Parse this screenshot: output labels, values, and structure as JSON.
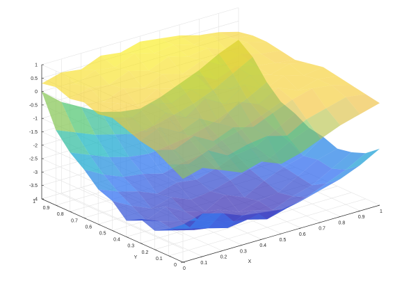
{
  "chart_data": {
    "type": "surface3d",
    "title": "",
    "xlabel": "X",
    "ylabel": "Y",
    "zlabel": "",
    "xlim": [
      0,
      1
    ],
    "ylim": [
      0,
      1
    ],
    "zlim": [
      -4,
      1
    ],
    "xticks": [
      "0",
      "0.1",
      "0.2",
      "0.3",
      "0.4",
      "0.5",
      "0.6",
      "0.7",
      "0.8",
      "0.9",
      "1"
    ],
    "yticks": [
      "0",
      "0.1",
      "0.2",
      "0.3",
      "0.4",
      "0.5",
      "0.6",
      "0.7",
      "0.8",
      "0.9",
      "1"
    ],
    "zticks": [
      "-4",
      "-3.5",
      "-3",
      "-2.5",
      "-2",
      "-1.5",
      "-1",
      "-0.5",
      "0",
      "0.5",
      "1"
    ],
    "grid": true,
    "colormap": "parula",
    "colormap_stops": [
      "#3e26a8",
      "#2e6ef2",
      "#13b3c9",
      "#5ec962",
      "#f3bd35",
      "#f9f00e"
    ],
    "x": [
      0,
      0.1,
      0.2,
      0.3,
      0.4,
      0.5,
      0.6,
      0.7,
      0.8,
      0.9,
      1
    ],
    "y": [
      0,
      0.1,
      0.2,
      0.3,
      0.4,
      0.5,
      0.6,
      0.7,
      0.8,
      0.9,
      1
    ],
    "surfaces": [
      {
        "alpha": 0.72,
        "z": [
          [
            -2.6,
            -2.4,
            -2.6,
            -2.9,
            -3.0,
            -3.1,
            -3.0,
            -2.8,
            -2.6,
            -2.3,
            -1.9
          ],
          [
            -3.0,
            -3.2,
            -3.4,
            -3.6,
            -3.5,
            -3.7,
            -3.5,
            -3.3,
            -3.0,
            -2.7,
            -2.3
          ],
          [
            -3.3,
            -3.5,
            -3.7,
            -3.6,
            -3.8,
            -3.6,
            -3.8,
            -3.5,
            -3.3,
            -2.9,
            -2.5
          ],
          [
            -3.1,
            -3.4,
            -3.6,
            -3.8,
            -3.6,
            -3.9,
            -3.7,
            -3.6,
            -3.2,
            -2.8,
            -2.6
          ],
          [
            -3.4,
            -3.6,
            -3.3,
            -3.7,
            -3.9,
            -3.5,
            -3.8,
            -3.4,
            -3.1,
            -2.9,
            -2.4
          ],
          [
            -2.9,
            -3.3,
            -3.6,
            -3.4,
            -3.7,
            -3.6,
            -3.4,
            -3.2,
            -3.0,
            -2.6,
            -2.3
          ],
          [
            -2.7,
            -3.0,
            -3.2,
            -3.5,
            -3.3,
            -3.4,
            -3.2,
            -2.9,
            -2.8,
            -2.4,
            -2.0
          ],
          [
            -2.2,
            -2.6,
            -2.9,
            -3.0,
            -3.2,
            -3.0,
            -2.9,
            -2.6,
            -2.4,
            -2.1,
            -1.8
          ],
          [
            -1.8,
            -2.1,
            -2.4,
            -2.6,
            -2.7,
            -2.6,
            -2.5,
            -2.3,
            -2.0,
            -1.7,
            -1.3
          ],
          [
            -1.2,
            -1.5,
            -1.8,
            -2.0,
            -2.2,
            -2.1,
            -1.9,
            -1.7,
            -1.4,
            -1.0,
            -0.6
          ],
          [
            0.0,
            -0.6,
            -1.0,
            -1.4,
            -1.6,
            -1.7,
            -1.5,
            -1.2,
            -0.9,
            -0.5,
            -0.2
          ]
        ]
      },
      {
        "alpha": 0.62,
        "z": [
          [
            -0.9,
            -0.7,
            -1.0,
            -1.3,
            -1.1,
            -1.4,
            -1.2,
            -0.9,
            -0.6,
            -0.4,
            -0.2
          ],
          [
            -0.6,
            -0.8,
            -0.5,
            -0.9,
            -0.7,
            -0.6,
            -0.8,
            -0.4,
            -0.2,
            0.0,
            -0.1
          ],
          [
            -0.3,
            -0.5,
            -0.2,
            -0.6,
            -0.3,
            -0.5,
            -0.2,
            0.1,
            0.3,
            0.2,
            0.0
          ],
          [
            -0.2,
            0.1,
            -0.3,
            0.0,
            -0.4,
            0.2,
            -0.1,
            0.3,
            0.0,
            0.2,
            0.1
          ],
          [
            0.0,
            -0.3,
            0.2,
            -0.2,
            0.3,
            -0.1,
            0.4,
            0.0,
            0.3,
            0.1,
            0.2
          ],
          [
            0.2,
            0.0,
            0.3,
            0.1,
            0.4,
            0.2,
            0.0,
            0.3,
            0.1,
            0.3,
            0.1
          ],
          [
            0.1,
            0.3,
            0.0,
            0.4,
            0.2,
            0.5,
            0.1,
            0.4,
            0.2,
            0.1,
            0.0
          ],
          [
            0.3,
            0.1,
            0.4,
            0.2,
            0.5,
            0.3,
            0.6,
            0.2,
            0.4,
            0.2,
            0.1
          ],
          [
            0.2,
            0.4,
            0.3,
            0.6,
            0.4,
            0.7,
            0.5,
            0.6,
            0.3,
            0.4,
            0.2
          ],
          [
            0.4,
            0.3,
            0.6,
            0.5,
            0.8,
            0.6,
            0.7,
            0.5,
            0.6,
            0.3,
            0.2
          ],
          [
            0.3,
            0.5,
            0.4,
            0.7,
            0.6,
            0.8,
            0.7,
            0.6,
            0.4,
            0.3,
            0.1
          ]
        ]
      }
    ]
  }
}
